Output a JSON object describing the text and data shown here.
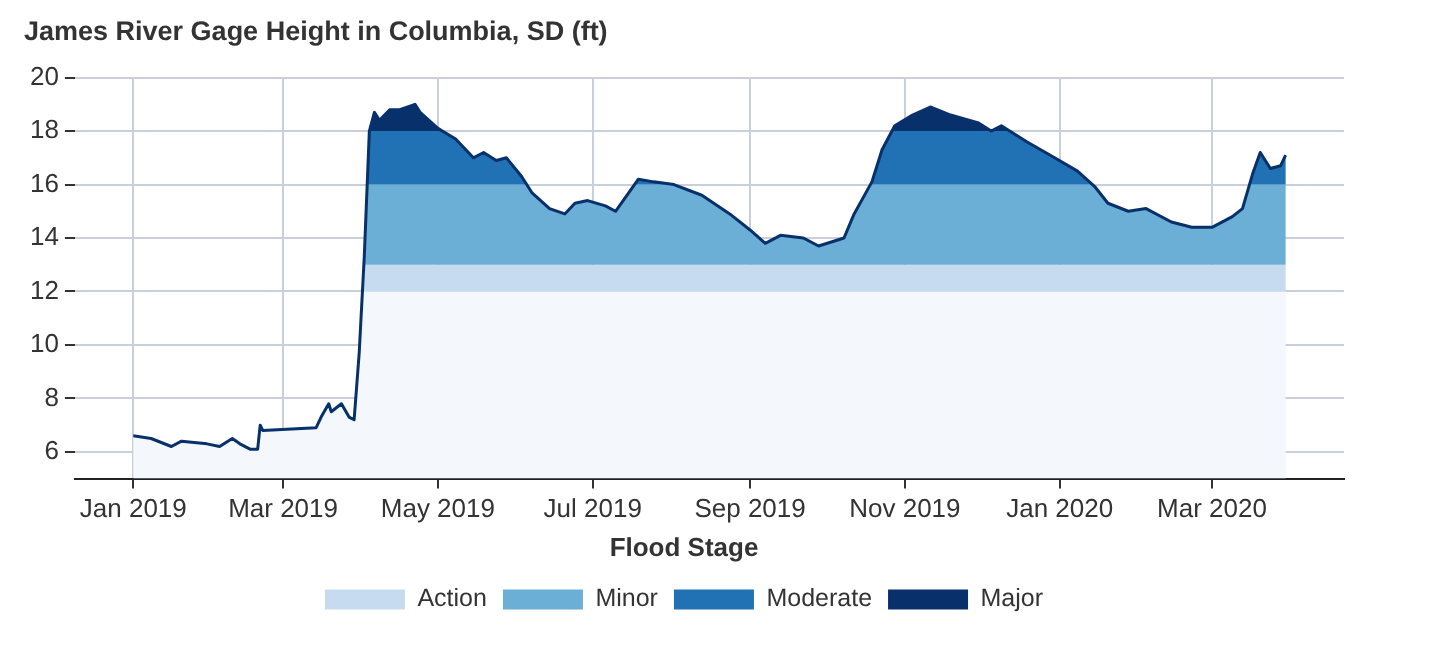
{
  "chart_data": {
    "type": "line",
    "title": "James River Gage Height in Columbia, SD (ft)",
    "x": [
      "2019-01-01",
      "2019-01-08",
      "2019-01-16",
      "2019-01-20",
      "2019-01-30",
      "2019-02-04",
      "2019-02-09",
      "2019-02-12",
      "2019-02-16",
      "2019-02-19",
      "2019-02-20",
      "2019-02-21",
      "2019-03-14",
      "2019-03-16",
      "2019-03-19",
      "2019-03-20",
      "2019-03-24",
      "2019-03-27",
      "2019-03-29",
      "2019-03-31",
      "2019-04-02",
      "2019-04-04",
      "2019-04-06",
      "2019-04-08",
      "2019-04-12",
      "2019-04-16",
      "2019-04-22",
      "2019-04-24",
      "2019-05-01",
      "2019-05-08",
      "2019-05-15",
      "2019-05-19",
      "2019-05-24",
      "2019-05-28",
      "2019-06-03",
      "2019-06-07",
      "2019-06-14",
      "2019-06-20",
      "2019-06-24",
      "2019-06-29",
      "2019-07-06",
      "2019-07-10",
      "2019-07-19",
      "2019-07-25",
      "2019-08-02",
      "2019-08-13",
      "2019-08-24",
      "2019-09-01",
      "2019-09-07",
      "2019-09-13",
      "2019-09-22",
      "2019-09-28",
      "2019-10-08",
      "2019-10-12",
      "2019-10-19",
      "2019-10-23",
      "2019-10-28",
      "2019-11-04",
      "2019-11-11",
      "2019-11-19",
      "2019-11-30",
      "2019-12-05",
      "2019-12-09",
      "2019-12-19",
      "2019-12-30",
      "2020-01-08",
      "2020-01-15",
      "2020-01-20",
      "2020-01-28",
      "2020-02-04",
      "2020-02-14",
      "2020-02-22",
      "2020-03-01",
      "2020-03-09",
      "2020-03-13",
      "2020-03-17",
      "2020-03-20",
      "2020-03-24",
      "2020-03-28",
      "2020-03-30"
    ],
    "series": [
      {
        "color": "#08306b",
        "values": [
          6.6,
          6.5,
          6.2,
          6.4,
          6.3,
          6.2,
          6.5,
          6.3,
          6.1,
          6.1,
          7.0,
          6.8,
          6.9,
          7.3,
          7.8,
          7.5,
          7.8,
          7.3,
          7.2,
          9.7,
          13.3,
          18.0,
          18.7,
          18.4,
          18.8,
          18.8,
          19.0,
          18.7,
          18.1,
          17.7,
          17.0,
          17.2,
          16.9,
          17.0,
          16.3,
          15.7,
          15.1,
          14.9,
          15.3,
          15.4,
          15.2,
          15.0,
          16.2,
          16.1,
          16.0,
          15.6,
          14.9,
          14.3,
          13.8,
          14.1,
          14.0,
          13.7,
          14.0,
          14.9,
          16.1,
          17.3,
          18.2,
          18.6,
          18.9,
          18.6,
          18.3,
          18.0,
          18.2,
          17.6,
          17.0,
          16.5,
          15.9,
          15.3,
          15.0,
          15.1,
          14.6,
          14.4,
          14.4,
          14.8,
          15.1,
          16.4,
          17.2,
          16.6,
          16.7,
          17.1
        ]
      }
    ],
    "xlim": [
      "2018-12-09",
      "2020-04-22"
    ],
    "xticks": [
      {
        "value": "2019-01-01",
        "label": "Jan 2019"
      },
      {
        "value": "2019-03-01",
        "label": "Mar 2019"
      },
      {
        "value": "2019-05-01",
        "label": "May 2019"
      },
      {
        "value": "2019-07-01",
        "label": "Jul 2019"
      },
      {
        "value": "2019-09-01",
        "label": "Sep 2019"
      },
      {
        "value": "2019-11-01",
        "label": "Nov 2019"
      },
      {
        "value": "2020-01-01",
        "label": "Jan 2020"
      },
      {
        "value": "2020-03-01",
        "label": "Mar 2020"
      }
    ],
    "ylim": [
      5,
      20
    ],
    "yticks": [
      6,
      8,
      10,
      12,
      14,
      16,
      18,
      20
    ],
    "bands": [
      {
        "axis": "y",
        "from": 5,
        "to": 12,
        "color": "#f4f8fd"
      },
      {
        "axis": "y",
        "from": 12,
        "to": 13,
        "label": "Action",
        "color": "#c6dbef"
      },
      {
        "axis": "y",
        "from": 13,
        "to": 16,
        "label": "Minor",
        "color": "#6baed6"
      },
      {
        "axis": "y",
        "from": 16,
        "to": 18,
        "label": "Moderate",
        "color": "#2171b5"
      },
      {
        "axis": "y",
        "from": 18,
        "to": 20,
        "label": "Major",
        "color": "#08306b"
      }
    ],
    "legend_title": "Flood Stage",
    "legend": "bottom",
    "grid": true
  }
}
